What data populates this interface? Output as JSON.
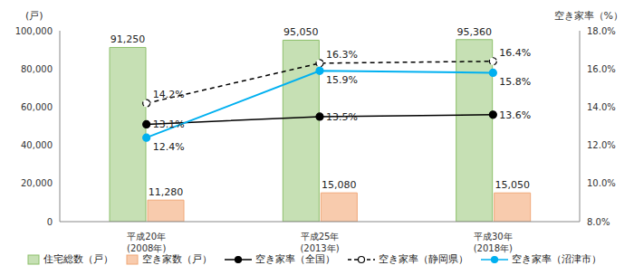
{
  "chart_data": {
    "type": "bar",
    "categories": [
      "平成20年\n(2008年)",
      "平成25年\n(2013年)",
      "平成30年\n(2018年)"
    ],
    "y_label": "(戸)",
    "y2_label": "空き家率（%）",
    "ylim": [
      0,
      100000
    ],
    "yticks": [
      0,
      {
        "value": 20000,
        "label": "20,000"
      },
      {
        "value": 40000,
        "label": "40,000"
      },
      {
        "value": 60000,
        "label": "60,000"
      },
      {
        "value": 80000,
        "label": "80,000"
      },
      {
        "value": 100000,
        "label": "100,000"
      }
    ],
    "y2lim": [
      8,
      18
    ],
    "y2ticks": [
      {
        "value": 8,
        "label": "8.0%"
      },
      {
        "value": 10,
        "label": "10.0%"
      },
      {
        "value": 12,
        "label": "12.0%"
      },
      {
        "value": 14,
        "label": "14.0%"
      },
      {
        "value": 16,
        "label": "16.0%"
      },
      {
        "value": 18,
        "label": "18.0%"
      }
    ],
    "grid": false,
    "legend": "bottom",
    "data_labels": true,
    "series": [
      {
        "name": "住宅総数（戸）",
        "type": "bar",
        "color": "#c6e0b4",
        "values": [
          91250,
          95050,
          95360
        ],
        "value_labels": [
          "91,250",
          "95,050",
          "95,360"
        ]
      },
      {
        "name": "空き家数（戸）",
        "type": "bar",
        "color": "#f8cbad",
        "values": [
          11280,
          15080,
          15050
        ],
        "value_labels": [
          "11,280",
          "15,080",
          "15,050"
        ]
      },
      {
        "name": "空き家率（全国）",
        "type": "line",
        "axis": "y2",
        "color": "#000000",
        "marker": "circle",
        "line_style": "solid",
        "values": [
          13.1,
          13.5,
          13.6
        ],
        "value_labels": [
          "13.1%",
          "13.5%",
          "13.6%"
        ]
      },
      {
        "name": "空き家率（静岡県）",
        "type": "line",
        "axis": "y2",
        "color": "#000000",
        "marker": "open_circle",
        "line_style": "dashed",
        "values": [
          14.2,
          16.3,
          16.4
        ],
        "value_labels": [
          "14.2%",
          "16.3%",
          "16.4%"
        ]
      },
      {
        "name": "空き家率（沼津市）",
        "type": "line",
        "axis": "y2",
        "color": "#00b0f0",
        "marker": "circle",
        "line_style": "solid",
        "values": [
          12.4,
          15.9,
          15.8
        ],
        "value_labels": [
          "12.4%",
          "15.9%",
          "15.8%"
        ]
      }
    ]
  }
}
